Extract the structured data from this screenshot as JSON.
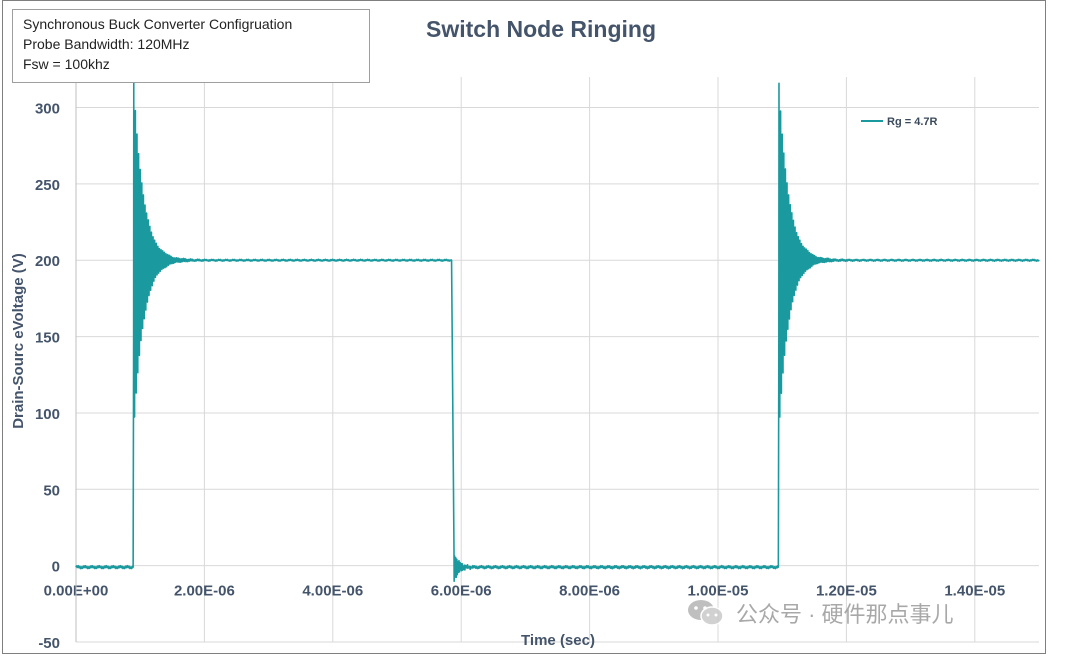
{
  "info_box": {
    "lines": [
      "Synchronous Buck Converter Configruation",
      "Probe Bandwidth: 120MHz",
      "Fsw = 100khz"
    ]
  },
  "watermark": {
    "text": "公众号 · 硬件那点事儿",
    "icon": "wechat-icon"
  },
  "chart_data": {
    "type": "line",
    "title": "Switch Node Ringing",
    "xlabel": "Time (sec)",
    "ylabel": "Drain-Sourc eVoltage (V)",
    "xlim": [
      0,
      1.5e-05
    ],
    "ylim": [
      -50,
      320
    ],
    "x_ticks": [
      "0.00E+00",
      "2.00E-06",
      "4.00E-06",
      "6.00E-06",
      "8.00E-06",
      "1.00E-05",
      "1.20E-05",
      "1.40E-05"
    ],
    "x_tick_values": [
      0,
      2e-06,
      4e-06,
      6e-06,
      8e-06,
      1e-05,
      1.2e-05,
      1.4e-05
    ],
    "y_ticks": [
      "-50",
      "0",
      "50",
      "100",
      "150",
      "200",
      "250",
      "300"
    ],
    "y_tick_values": [
      -50,
      0,
      50,
      100,
      150,
      200,
      250,
      300
    ],
    "grid": true,
    "legend_position": "top-right",
    "color": "#1a9a9e",
    "series": [
      {
        "name": "Rg = 4.7R",
        "x": [
          0,
          8.8e-07,
          9e-07,
          9.2e-07,
          1e-06,
          1.2e-06,
          1.5e-06,
          2e-06,
          4e-06,
          5.8e-06,
          5.9e-06,
          6e-06,
          6.3e-06,
          8e-06,
          1.08e-05,
          1.09e-05,
          1.1e-05,
          1.13e-05,
          1.2e-05,
          1.5e-05
        ],
        "y": [
          0,
          0,
          315,
          90,
          260,
          150,
          205,
          199,
          200,
          200,
          0,
          -10,
          -2,
          -1,
          0,
          317,
          92,
          210,
          199,
          200
        ]
      }
    ],
    "waveform": {
      "low_level": -1,
      "high_level": 200,
      "rise_times": [
        9e-07,
        1.095e-05
      ],
      "fall_time": 5.85e-06,
      "ring_peak": 316,
      "ring_trough": 88,
      "ring_frequency_hz": 120000000,
      "ring_decay_s": 1.5e-07
    }
  }
}
